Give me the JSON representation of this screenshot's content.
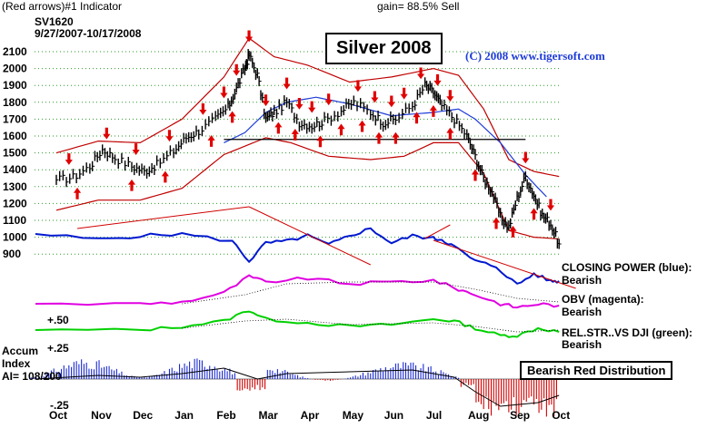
{
  "header": {
    "indicator_label": "(Red arrows)#1 Indicator",
    "gain_label": "gain= 88.5% Sell",
    "symbol": "SV1620",
    "date_range": "9/27/2007-10/17/2008"
  },
  "title": "Silver 2008",
  "copyright": "(C) 2008 www.tigersoft.com",
  "distribution_label": "Bearish Red Distribution",
  "right_labels": {
    "closing_power": "CLOSING POWER (blue):",
    "closing_power_state": "Bearish",
    "obv": "OBV (magenta):",
    "obv_state": "Bearish",
    "relstr": "REL.STR..VS DJI (green):",
    "relstr_state": "Bearish"
  },
  "accum_labels": {
    "line1": "Accum",
    "line2": "Index",
    "line3": "AI= 108/200",
    "plus50": "+.50",
    "plus25": "+.25",
    "minus25": "-.25"
  },
  "colors": {
    "price_bars": "#000000",
    "bands": "#c00000",
    "ma_blue": "#1f3cd8",
    "closing_power": "#0018d0",
    "obv": "#e000e0",
    "relstr": "#00d000",
    "accum_pos": "#1a2ad0",
    "accum_neg": "#d00000",
    "grid": "#2a9a2a",
    "arrows": "#e00000"
  },
  "chart_data": {
    "type": "line",
    "title": "Silver 2008",
    "y_ticks": [
      2100,
      2000,
      1900,
      1800,
      1700,
      1600,
      1500,
      1400,
      1300,
      1200,
      1100,
      1000,
      900
    ],
    "ylim": [
      900,
      2180
    ],
    "x_ticks": [
      "Oct",
      "Nov",
      "Dec",
      "Jan",
      "Feb",
      "Mar",
      "Apr",
      "May",
      "Jun",
      "Jul",
      "Aug",
      "Sep",
      "Oct"
    ],
    "series": [
      {
        "name": "Silver price (SV1620)",
        "points": [
          [
            0,
            1340
          ],
          [
            0.4,
            1355
          ],
          [
            0.8,
            1420
          ],
          [
            1.1,
            1520
          ],
          [
            1.4,
            1470
          ],
          [
            1.8,
            1420
          ],
          [
            2.1,
            1390
          ],
          [
            2.4,
            1430
          ],
          [
            2.8,
            1510
          ],
          [
            3.1,
            1590
          ],
          [
            3.4,
            1630
          ],
          [
            3.8,
            1700
          ],
          [
            4.1,
            1770
          ],
          [
            4.3,
            1880
          ],
          [
            4.5,
            2000
          ],
          [
            4.6,
            2080
          ],
          [
            4.8,
            1960
          ],
          [
            5.0,
            1700
          ],
          [
            5.2,
            1740
          ],
          [
            5.5,
            1800
          ],
          [
            5.8,
            1680
          ],
          [
            6.1,
            1660
          ],
          [
            6.4,
            1690
          ],
          [
            6.8,
            1750
          ],
          [
            7.1,
            1800
          ],
          [
            7.5,
            1740
          ],
          [
            7.8,
            1680
          ],
          [
            8.1,
            1700
          ],
          [
            8.5,
            1780
          ],
          [
            8.8,
            1900
          ],
          [
            9.0,
            1860
          ],
          [
            9.2,
            1780
          ],
          [
            9.5,
            1700
          ],
          [
            9.8,
            1600
          ],
          [
            10.0,
            1480
          ],
          [
            10.2,
            1350
          ],
          [
            10.4,
            1270
          ],
          [
            10.6,
            1120
          ],
          [
            10.8,
            1060
          ],
          [
            11.0,
            1230
          ],
          [
            11.2,
            1360
          ],
          [
            11.4,
            1250
          ],
          [
            11.6,
            1130
          ],
          [
            11.8,
            1080
          ],
          [
            12.0,
            960
          ]
        ]
      },
      {
        "name": "Upper band",
        "points": [
          [
            0,
            1500
          ],
          [
            1,
            1570
          ],
          [
            2,
            1560
          ],
          [
            3,
            1700
          ],
          [
            4,
            1950
          ],
          [
            4.6,
            2180
          ],
          [
            5.2,
            2070
          ],
          [
            6,
            2020
          ],
          [
            7,
            1920
          ],
          [
            8,
            1950
          ],
          [
            9,
            2000
          ],
          [
            9.6,
            1960
          ],
          [
            10.2,
            1760
          ],
          [
            10.8,
            1460
          ],
          [
            11.4,
            1390
          ],
          [
            12,
            1360
          ]
        ]
      },
      {
        "name": "Lower band",
        "points": [
          [
            0,
            1160
          ],
          [
            1,
            1220
          ],
          [
            2,
            1220
          ],
          [
            3,
            1290
          ],
          [
            4,
            1490
          ],
          [
            5,
            1590
          ],
          [
            5.6,
            1560
          ],
          [
            6.5,
            1480
          ],
          [
            7.5,
            1460
          ],
          [
            8.3,
            1480
          ],
          [
            9,
            1560
          ],
          [
            9.6,
            1560
          ],
          [
            10.2,
            1380
          ],
          [
            10.8,
            1040
          ],
          [
            11.4,
            1000
          ],
          [
            12,
            990
          ]
        ]
      },
      {
        "name": "Moving average",
        "points": [
          [
            4,
            1560
          ],
          [
            4.5,
            1620
          ],
          [
            5,
            1740
          ],
          [
            5.5,
            1800
          ],
          [
            6.2,
            1830
          ],
          [
            7,
            1790
          ],
          [
            8,
            1720
          ],
          [
            9,
            1740
          ],
          [
            9.6,
            1760
          ],
          [
            10,
            1700
          ],
          [
            10.6,
            1560
          ],
          [
            11.2,
            1370
          ],
          [
            11.7,
            1240
          ]
        ]
      }
    ],
    "up_arrow_x": [
      0.5,
      1.8,
      2.6,
      3.7,
      4.2,
      5.3,
      5.7,
      6.3,
      6.8,
      7.3,
      7.7,
      8.1,
      8.6,
      9.0,
      9.4,
      10.0,
      10.5,
      10.9,
      11.4
    ],
    "down_arrow_x": [
      0.3,
      1.2,
      1.9,
      2.7,
      3.5,
      4.0,
      4.3,
      4.6,
      5.0,
      5.5,
      5.8,
      6.1,
      6.5,
      7.2,
      7.6,
      8.0,
      8.3,
      8.7,
      9.1,
      9.4,
      11.2,
      11.8
    ],
    "support_line": [
      1580,
      1580
    ]
  }
}
